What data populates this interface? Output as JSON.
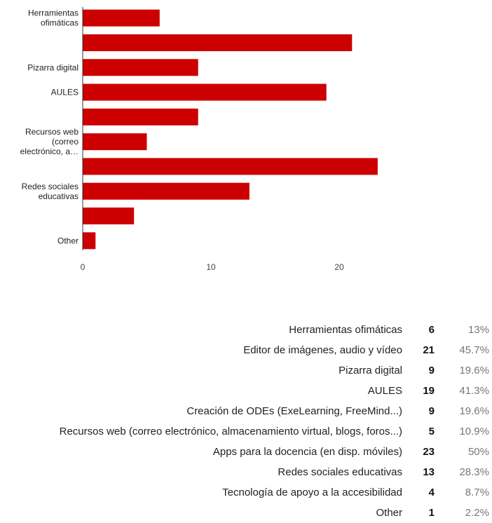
{
  "chart_data": {
    "type": "bar",
    "orientation": "horizontal",
    "categories": [
      "Herramientas ofimáticas",
      "Editor de imágenes, audio y vídeo",
      "Pizarra digital",
      "AULES",
      "Creación de ODEs (ExeLearning, FreeMind...)",
      "Recursos web (correo electrónico, almacenamiento virtual, blogs, foros...)",
      "Apps para la docencia (en disp. móviles)",
      "Redes sociales educativas",
      "Tecnología de apoyo a la accesibilidad",
      "Other"
    ],
    "axis_labels": [
      [
        "Herramientas",
        "ofimáticas"
      ],
      [],
      [
        "Pizarra digital"
      ],
      [
        "AULES"
      ],
      [],
      [
        "Recursos web",
        "(correo",
        "electrónico, a…"
      ],
      [],
      [
        "Redes sociales",
        "educativas"
      ],
      [],
      [
        "Other"
      ]
    ],
    "values": [
      6,
      21,
      9,
      19,
      9,
      5,
      23,
      13,
      4,
      1
    ],
    "percentages": [
      "13%",
      "45.7%",
      "19.6%",
      "41.3%",
      "19.6%",
      "10.9%",
      "50%",
      "28.3%",
      "8.7%",
      "2.2%"
    ],
    "xlim": [
      0,
      25
    ],
    "xticks": [
      0,
      10,
      20
    ],
    "bar_color": "#cc0000",
    "grid": false
  }
}
